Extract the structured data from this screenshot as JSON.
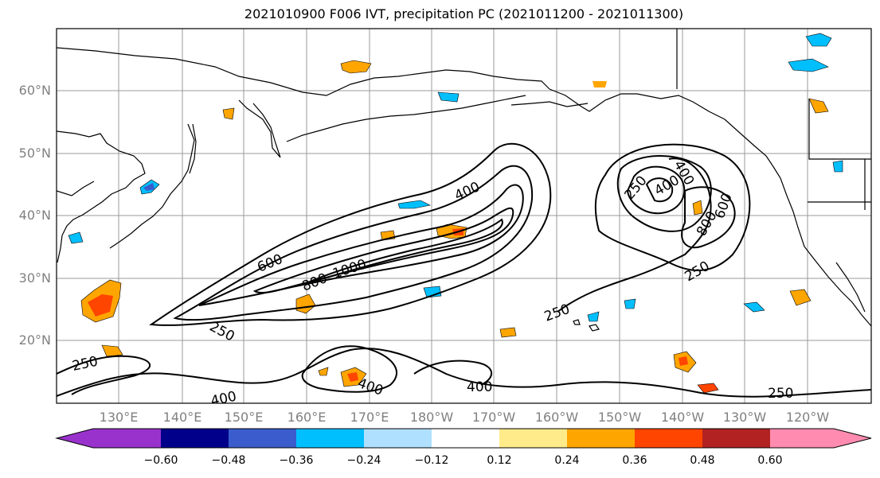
{
  "title": "2021010900 F006 IVT, precipitation PC (2021011200 - 2021011300)",
  "latitude_labels": [
    "60°N",
    "50°N",
    "40°N",
    "30°N",
    "20°N"
  ],
  "longitude_labels": [
    "130°E",
    "140°E",
    "150°E",
    "160°E",
    "170°E",
    "180°W",
    "170°W",
    "160°W",
    "150°W",
    "140°W",
    "130°W",
    "120°W"
  ],
  "contour_labels": [
    "250",
    "400",
    "600",
    "800",
    "1000"
  ],
  "colorbar": {
    "tick_labels": [
      "−0.60",
      "−0.48",
      "−0.36",
      "−0.24",
      "−0.12",
      "0.12",
      "0.24",
      "0.36",
      "0.48",
      "0.60"
    ],
    "colors": [
      "#9932CC",
      "#00008B",
      "#3A5CCC",
      "#00BFFF",
      "#B0E0FF",
      "#FFFFFF",
      "#FFEB8A",
      "#FFA500",
      "#FF4500",
      "#B22222",
      "#FF8CB0"
    ]
  }
}
